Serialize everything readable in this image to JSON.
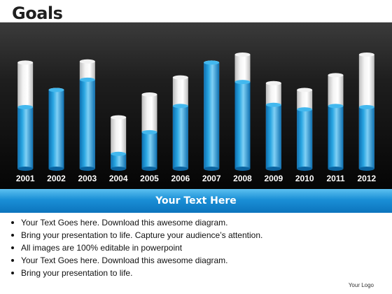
{
  "slide": {
    "title": "Goals",
    "banner_text": "Your Text Here",
    "bullets": [
      "Your Text Goes here. Download this awesome diagram.",
      "Bring your presentation to life. Capture your audience’s attention.",
      "All images are 100% editable in powerpoint",
      "Your Text Goes here. Download this awesome diagram.",
      "Bring your presentation to life."
    ],
    "logo_text": "Your Logo"
  },
  "colors": {
    "fill": "#1a9ad8",
    "fill_highlight": "#7fd0f5",
    "banner": "#1a8fd6",
    "tube_glass": "#e8e8e8"
  },
  "chart_data": {
    "type": "bar",
    "categories": [
      "2001",
      "2002",
      "2003",
      "2004",
      "2005",
      "2006",
      "2007",
      "2008",
      "2009",
      "2010",
      "2011",
      "2012"
    ],
    "values": [
      54,
      69,
      78,
      13,
      32,
      55,
      93,
      76,
      56,
      52,
      55,
      54
    ],
    "capacity": [
      93,
      69,
      94,
      45,
      65,
      80,
      93,
      100,
      75,
      69,
      82,
      100
    ],
    "ylim": [
      0,
      100
    ],
    "grid": false,
    "legend": "none"
  }
}
